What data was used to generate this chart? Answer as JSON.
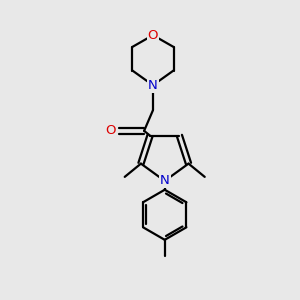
{
  "background_color": "#e8e8e8",
  "bond_color": "#000000",
  "N_color": "#0000cc",
  "O_color": "#dd0000",
  "line_width": 1.6,
  "font_size": 9.5,
  "figsize": [
    3.0,
    3.0
  ],
  "dpi": 100,
  "xlim": [
    0,
    10
  ],
  "ylim": [
    0,
    10
  ]
}
